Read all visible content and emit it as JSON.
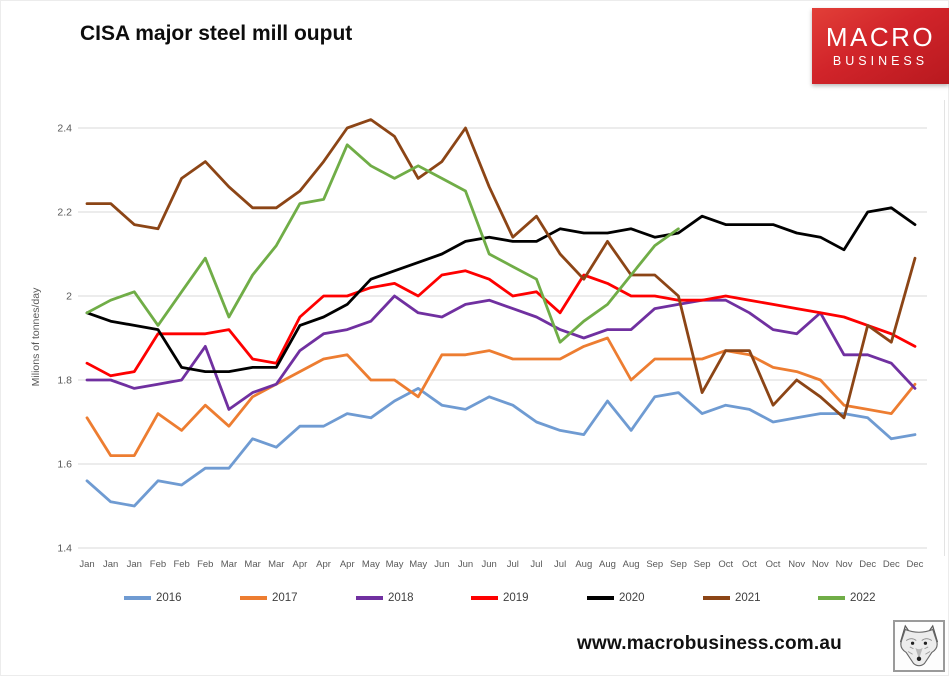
{
  "logo": {
    "line1": "MACRO",
    "line2": "BUSINESS"
  },
  "footer": {
    "website": "www.macrobusiness.com.au"
  },
  "chart_data": {
    "type": "line",
    "title": "CISA major steel mill ouput",
    "xlabel": "",
    "ylabel": "Milions of tonnes/day",
    "ylim": [
      1.4,
      2.4
    ],
    "yticks": [
      1.4,
      1.6,
      1.8,
      2,
      2.2,
      2.4
    ],
    "ytick_labels": [
      "1.4",
      "1.6",
      "1.8",
      "2",
      "2.2",
      "2.4"
    ],
    "grid": "horizontal",
    "gridline_color": "#d9d9d9",
    "axis_text_color": "#595959",
    "legend_position": "bottom",
    "x_labels": [
      "Jan",
      "Jan",
      "Jan",
      "Feb",
      "Feb",
      "Feb",
      "Mar",
      "Mar",
      "Mar",
      "Apr",
      "Apr",
      "Apr",
      "May",
      "May",
      "May",
      "Jun",
      "Jun",
      "Jun",
      "Jul",
      "Jul",
      "Jul",
      "Aug",
      "Aug",
      "Aug",
      "Sep",
      "Sep",
      "Sep",
      "Oct",
      "Oct",
      "Oct",
      "Nov",
      "Nov",
      "Nov",
      "Dec",
      "Dec",
      "Dec"
    ],
    "series": [
      {
        "name": "2016",
        "color": "#6f9bd2",
        "values": [
          1.56,
          1.51,
          1.5,
          1.56,
          1.55,
          1.59,
          1.59,
          1.66,
          1.64,
          1.69,
          1.69,
          1.72,
          1.71,
          1.75,
          1.78,
          1.74,
          1.73,
          1.76,
          1.74,
          1.7,
          1.68,
          1.67,
          1.75,
          1.68,
          1.76,
          1.77,
          1.72,
          1.74,
          1.73,
          1.7,
          1.71,
          1.72,
          1.72,
          1.71,
          1.66,
          1.67
        ]
      },
      {
        "name": "2017",
        "color": "#ed7d31",
        "values": [
          1.71,
          1.62,
          1.62,
          1.72,
          1.68,
          1.74,
          1.69,
          1.76,
          1.79,
          1.82,
          1.85,
          1.86,
          1.8,
          1.8,
          1.76,
          1.86,
          1.86,
          1.87,
          1.85,
          1.85,
          1.85,
          1.88,
          1.9,
          1.8,
          1.85,
          1.85,
          1.85,
          1.87,
          1.86,
          1.83,
          1.82,
          1.8,
          1.74,
          1.73,
          1.72,
          1.79
        ]
      },
      {
        "name": "2018",
        "color": "#7030a0",
        "values": [
          1.8,
          1.8,
          1.78,
          1.79,
          1.8,
          1.88,
          1.73,
          1.77,
          1.79,
          1.87,
          1.91,
          1.92,
          1.94,
          2.0,
          1.96,
          1.95,
          1.98,
          1.99,
          1.97,
          1.95,
          1.92,
          1.9,
          1.92,
          1.92,
          1.97,
          1.98,
          1.99,
          1.99,
          1.96,
          1.92,
          1.91,
          1.96,
          1.86,
          1.86,
          1.84,
          1.78
        ]
      },
      {
        "name": "2019",
        "color": "#fe0000",
        "values": [
          1.84,
          1.81,
          1.82,
          1.91,
          1.91,
          1.91,
          1.92,
          1.85,
          1.84,
          1.95,
          2.0,
          2.0,
          2.02,
          2.03,
          2.0,
          2.05,
          2.06,
          2.04,
          2.0,
          2.01,
          1.96,
          2.05,
          2.03,
          2.0,
          2.0,
          1.99,
          1.99,
          2.0,
          1.99,
          1.98,
          1.97,
          1.96,
          1.95,
          1.93,
          1.91,
          1.88
        ]
      },
      {
        "name": "2020",
        "color": "#000000",
        "values": [
          1.96,
          1.94,
          1.93,
          1.92,
          1.83,
          1.82,
          1.82,
          1.83,
          1.83,
          1.93,
          1.95,
          1.98,
          2.04,
          2.06,
          2.08,
          2.1,
          2.13,
          2.14,
          2.13,
          2.13,
          2.16,
          2.15,
          2.15,
          2.16,
          2.14,
          2.15,
          2.19,
          2.17,
          2.17,
          2.17,
          2.15,
          2.14,
          2.11,
          2.2,
          2.21,
          2.17
        ]
      },
      {
        "name": "2021",
        "color": "#8c4516",
        "values": [
          2.22,
          2.22,
          2.17,
          2.16,
          2.28,
          2.32,
          2.26,
          2.21,
          2.21,
          2.25,
          2.32,
          2.4,
          2.42,
          2.38,
          2.28,
          2.32,
          2.4,
          2.26,
          2.14,
          2.19,
          2.1,
          2.04,
          2.13,
          2.05,
          2.05,
          2.0,
          1.77,
          1.87,
          1.87,
          1.74,
          1.8,
          1.76,
          1.71,
          1.93,
          1.89,
          2.09
        ]
      },
      {
        "name": "2022",
        "color": "#70ad47",
        "values": [
          1.96,
          1.99,
          2.01,
          1.93,
          2.01,
          2.09,
          1.95,
          2.05,
          2.12,
          2.22,
          2.23,
          2.36,
          2.31,
          2.28,
          2.31,
          2.28,
          2.25,
          2.1,
          2.07,
          2.04,
          1.89,
          1.94,
          1.98,
          2.05,
          2.12,
          2.16
        ]
      }
    ]
  }
}
